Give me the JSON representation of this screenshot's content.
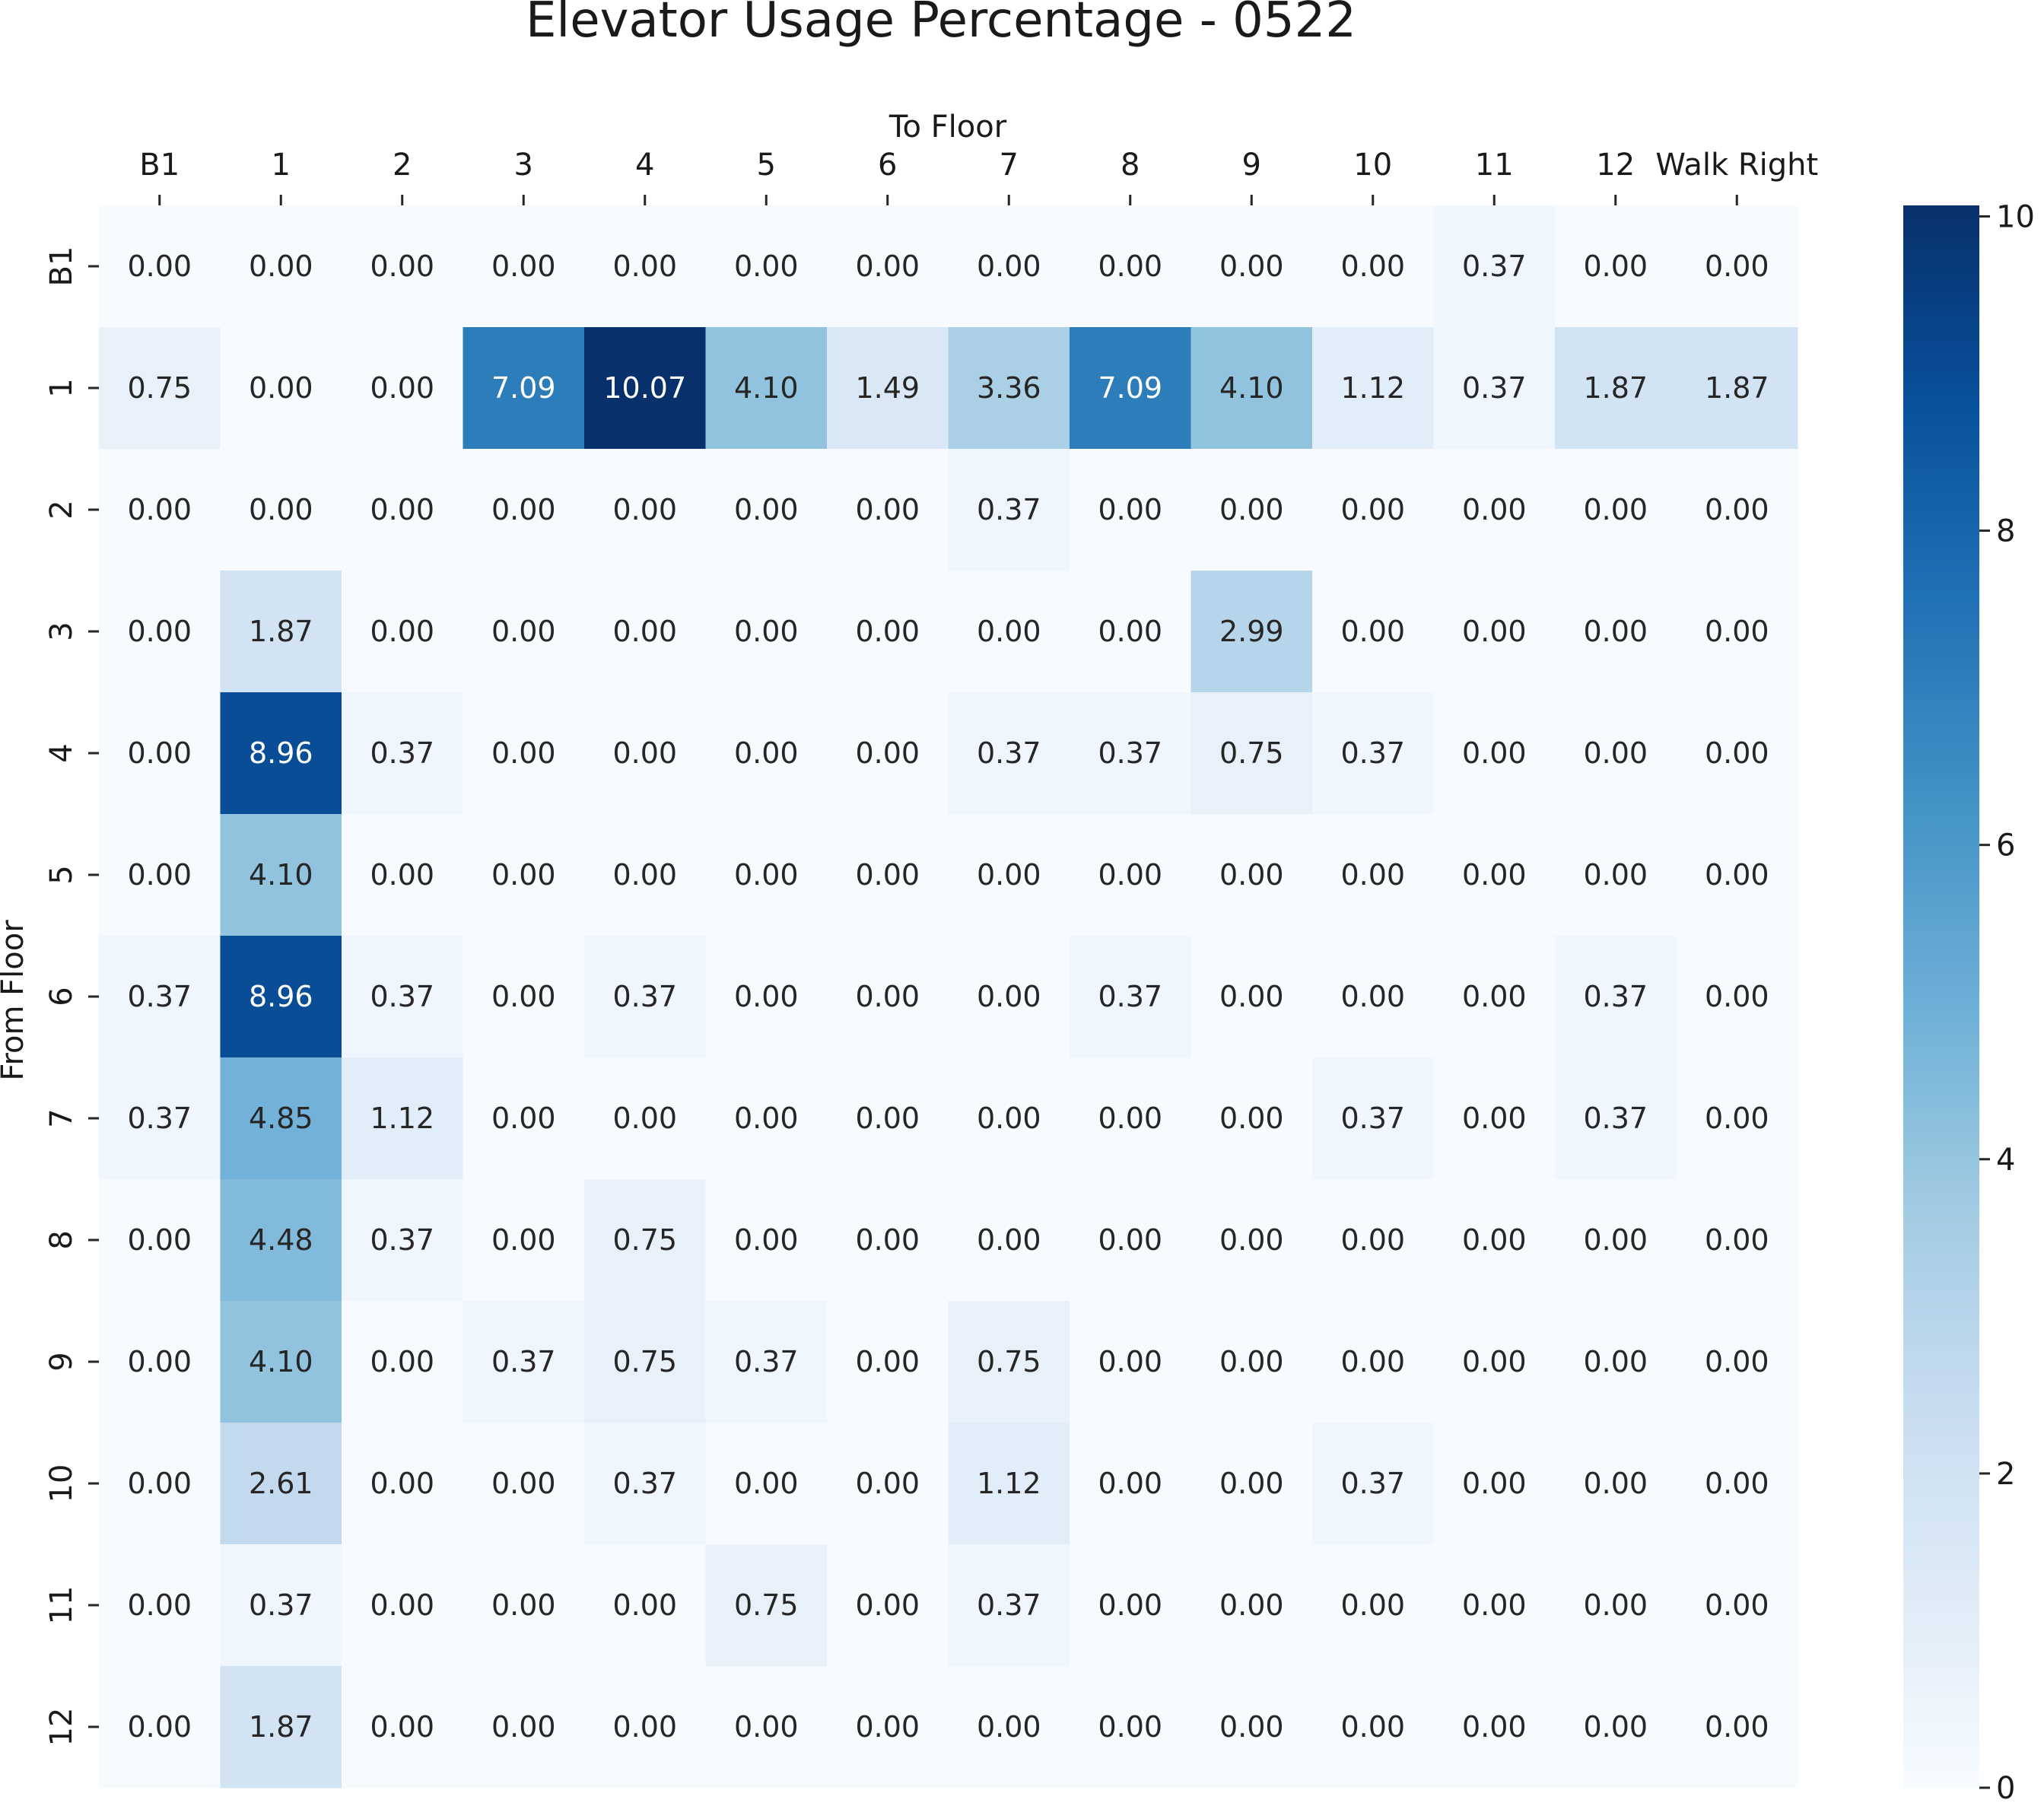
{
  "chart_data": {
    "type": "heatmap",
    "title": "Elevator Usage Percentage - 0522",
    "xlabel": "To Floor",
    "ylabel": "From Floor",
    "x_categories": [
      "B1",
      "1",
      "2",
      "3",
      "4",
      "5",
      "6",
      "7",
      "8",
      "9",
      "10",
      "11",
      "12",
      "Walk Right"
    ],
    "y_categories": [
      "B1",
      "1",
      "2",
      "3",
      "4",
      "5",
      "6",
      "7",
      "8",
      "9",
      "10",
      "11",
      "12"
    ],
    "values": [
      [
        0.0,
        0.0,
        0.0,
        0.0,
        0.0,
        0.0,
        0.0,
        0.0,
        0.0,
        0.0,
        0.0,
        0.37,
        0.0,
        0.0
      ],
      [
        0.75,
        0.0,
        0.0,
        7.09,
        10.07,
        4.1,
        1.49,
        3.36,
        7.09,
        4.1,
        1.12,
        0.37,
        1.87,
        1.87
      ],
      [
        0.0,
        0.0,
        0.0,
        0.0,
        0.0,
        0.0,
        0.0,
        0.37,
        0.0,
        0.0,
        0.0,
        0.0,
        0.0,
        0.0
      ],
      [
        0.0,
        1.87,
        0.0,
        0.0,
        0.0,
        0.0,
        0.0,
        0.0,
        0.0,
        2.99,
        0.0,
        0.0,
        0.0,
        0.0
      ],
      [
        0.0,
        8.96,
        0.37,
        0.0,
        0.0,
        0.0,
        0.0,
        0.37,
        0.37,
        0.75,
        0.37,
        0.0,
        0.0,
        0.0
      ],
      [
        0.0,
        4.1,
        0.0,
        0.0,
        0.0,
        0.0,
        0.0,
        0.0,
        0.0,
        0.0,
        0.0,
        0.0,
        0.0,
        0.0
      ],
      [
        0.37,
        8.96,
        0.37,
        0.0,
        0.37,
        0.0,
        0.0,
        0.0,
        0.37,
        0.0,
        0.0,
        0.0,
        0.37,
        0.0
      ],
      [
        0.37,
        4.85,
        1.12,
        0.0,
        0.0,
        0.0,
        0.0,
        0.0,
        0.0,
        0.0,
        0.37,
        0.0,
        0.37,
        0.0
      ],
      [
        0.0,
        4.48,
        0.37,
        0.0,
        0.75,
        0.0,
        0.0,
        0.0,
        0.0,
        0.0,
        0.0,
        0.0,
        0.0,
        0.0
      ],
      [
        0.0,
        4.1,
        0.0,
        0.37,
        0.75,
        0.37,
        0.0,
        0.75,
        0.0,
        0.0,
        0.0,
        0.0,
        0.0,
        0.0
      ],
      [
        0.0,
        2.61,
        0.0,
        0.0,
        0.37,
        0.0,
        0.0,
        1.12,
        0.0,
        0.0,
        0.37,
        0.0,
        0.0,
        0.0
      ],
      [
        0.0,
        0.37,
        0.0,
        0.0,
        0.0,
        0.75,
        0.0,
        0.37,
        0.0,
        0.0,
        0.0,
        0.0,
        0.0,
        0.0
      ],
      [
        0.0,
        1.87,
        0.0,
        0.0,
        0.0,
        0.0,
        0.0,
        0.0,
        0.0,
        0.0,
        0.0,
        0.0,
        0.0,
        0.0
      ]
    ],
    "value_range": [
      0,
      10.07
    ],
    "colormap": "Blues",
    "colormap_stops": [
      "#f7fbff",
      "#deebf7",
      "#c6dbef",
      "#9ecae1",
      "#6baed6",
      "#4292c6",
      "#2171b5",
      "#08519c",
      "#08306b"
    ],
    "annotation_format": "0.00",
    "colorbar": {
      "ticks": [
        "0",
        "2",
        "4",
        "6",
        "8",
        "10"
      ]
    },
    "x_axis_position": "top",
    "grid": false,
    "legend": "colorbar-right"
  }
}
